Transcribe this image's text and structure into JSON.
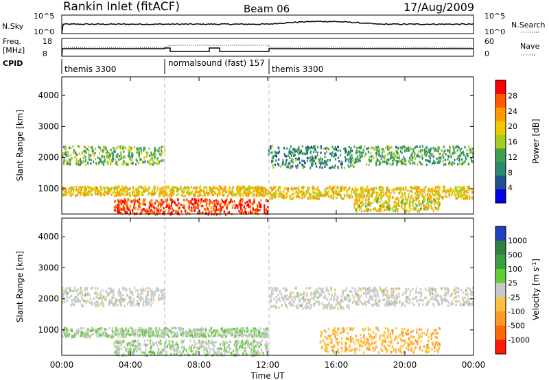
{
  "header": {
    "station": "Rankin Inlet (fitACF)",
    "beam": "Beam 06",
    "date": "17/Aug/2009"
  },
  "top_panels": {
    "nsky_label": "N.Sky",
    "nsky_hi": "10^5",
    "nsky_lo": "10^0",
    "nsearch_label": "N.Search",
    "nsearch_hi": "10^5",
    "nsearch_lo": "10^0",
    "freq_label": "Freq.",
    "freq_unit": "[MHz]",
    "freq_hi": "18",
    "freq_lo": "8",
    "nave_label": "Nave",
    "nave_hi": "60",
    "nave_lo": "0",
    "cpid_label": "CPID"
  },
  "modes": [
    {
      "label": "themis 3300",
      "start_hr": 0,
      "end_hr": 6
    },
    {
      "label": "normalsound (fast) 157",
      "start_hr": 6,
      "end_hr": 12
    },
    {
      "label": "themis 3300",
      "start_hr": 12,
      "end_hr": 24
    }
  ],
  "power_panel": {
    "ylabel": "Slant Range [km]",
    "cbar_label": "Power [dB]",
    "cbar_ticks": [
      "28",
      "24",
      "20",
      "16",
      "12",
      "8",
      "4"
    ],
    "cbar_colors": [
      "#ff0000",
      "#ff5a00",
      "#ff9a00",
      "#f0c800",
      "#a8cc20",
      "#40a050",
      "#2a8a70",
      "#205090",
      "#0000e8"
    ]
  },
  "velocity_panel": {
    "ylabel": "Slant Range [km]",
    "cbar_label": "Velocity [m s",
    "cbar_label_sup": "-1",
    "cbar_label_end": "]",
    "cbar_ticks": [
      "1000",
      "500",
      "100",
      "25",
      "-25",
      "-100",
      "-500",
      "-1000"
    ],
    "cbar_colors": [
      "#2040c0",
      "#308040",
      "#3aa040",
      "#60d030",
      "#c8c8c8",
      "#ffc040",
      "#ff9a20",
      "#ff6a00",
      "#ff1a00"
    ]
  },
  "xaxis": {
    "label": "Time UT",
    "ticks": [
      "00:00",
      "04:00",
      "08:00",
      "12:00",
      "16:00",
      "20:00",
      "00:00"
    ]
  },
  "chart_data": [
    {
      "type": "heatmap",
      "title": "Rankin Inlet (fitACF) Beam 06 17/Aug/2009",
      "quantity": "Power",
      "unit": "dB",
      "xlabel": "Time UT",
      "ylabel": "Slant Range [km]",
      "xlim_hr": [
        0,
        24
      ],
      "ylim_km": [
        180,
        4600
      ],
      "color_range": [
        0,
        32
      ],
      "bands": [
        {
          "t0": 0,
          "t1": 6,
          "r0": 1800,
          "r1": 2400,
          "level": 14
        },
        {
          "t0": 0,
          "t1": 12,
          "r0": 800,
          "r1": 1100,
          "level": 20
        },
        {
          "t0": 3,
          "t1": 12,
          "r0": 200,
          "r1": 700,
          "level": 28
        },
        {
          "t0": 12,
          "t1": 17,
          "r0": 1700,
          "r1": 2400,
          "level": 10
        },
        {
          "t0": 12,
          "t1": 24,
          "r0": 700,
          "r1": 1100,
          "level": 20
        },
        {
          "t0": 17,
          "t1": 22,
          "r0": 300,
          "r1": 700,
          "level": 18
        },
        {
          "t0": 17,
          "t1": 24,
          "r0": 1800,
          "r1": 2400,
          "level": 12
        }
      ]
    },
    {
      "type": "heatmap",
      "quantity": "Velocity",
      "unit": "m s^-1",
      "xlabel": "Time UT",
      "ylabel": "Slant Range [km]",
      "xlim_hr": [
        0,
        24
      ],
      "ylim_km": [
        180,
        4600
      ],
      "color_range": [
        -1000,
        1000
      ],
      "bands": [
        {
          "t0": 0,
          "t1": 6,
          "r0": 1800,
          "r1": 2400,
          "level": 0
        },
        {
          "t0": 0,
          "t1": 12,
          "r0": 800,
          "r1": 1100,
          "level": 80
        },
        {
          "t0": 3,
          "t1": 12,
          "r0": 200,
          "r1": 700,
          "level": 60
        },
        {
          "t0": 12,
          "t1": 17,
          "r0": 1700,
          "r1": 2400,
          "level": 0
        },
        {
          "t0": 15,
          "t1": 22,
          "r0": 300,
          "r1": 1100,
          "level": -300
        },
        {
          "t0": 17,
          "t1": 24,
          "r0": 1800,
          "r1": 2400,
          "level": 0
        }
      ]
    }
  ]
}
